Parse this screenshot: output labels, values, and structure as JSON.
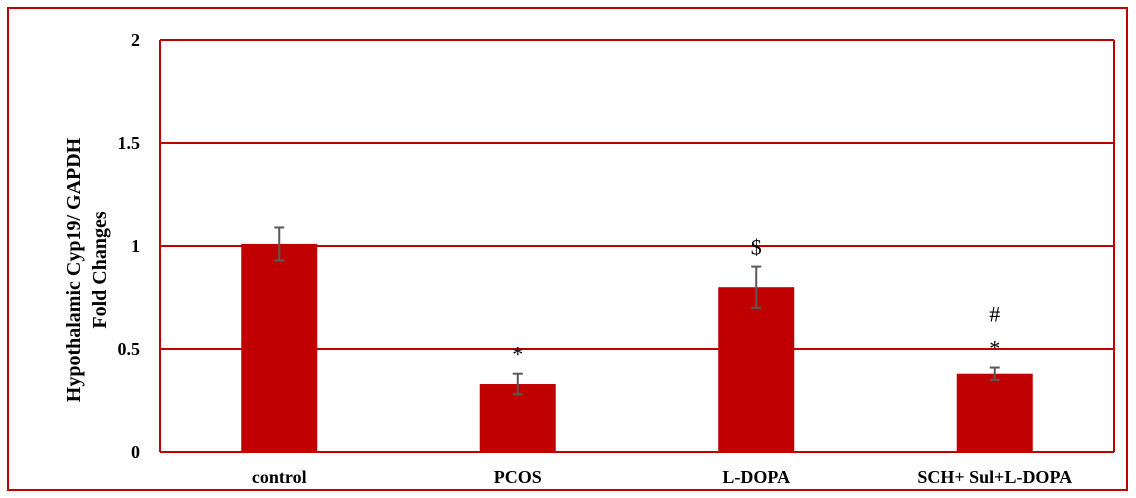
{
  "chart_data": {
    "type": "bar",
    "title": "",
    "ylabel_line1": "Hypothalamic Cyp19/ GAPDH",
    "ylabel_line2": "Fold Changes",
    "xlabel": "",
    "categories": [
      "control",
      "PCOS",
      "L-DOPA",
      "SCH+ Sul+L-DOPA"
    ],
    "values": [
      1.01,
      0.33,
      0.8,
      0.38
    ],
    "errors": [
      0.08,
      0.05,
      0.1,
      0.03
    ],
    "annotations": [
      {
        "category": "PCOS",
        "text": [
          "*"
        ]
      },
      {
        "category": "L-DOPA",
        "text": [
          "$"
        ]
      },
      {
        "category": "SCH+ Sul+L-DOPA",
        "text": [
          "#",
          "*"
        ]
      }
    ],
    "ylim": [
      0,
      2
    ],
    "yticks": [
      "0",
      "0.5",
      "1",
      "1.5",
      "2"
    ],
    "ytick_values": [
      0,
      0.5,
      1,
      1.5,
      2
    ],
    "grid": true,
    "colors": {
      "bar": "#c00000",
      "grid": "#c00000",
      "border": "#c00000",
      "errorbar": "#595959"
    }
  }
}
